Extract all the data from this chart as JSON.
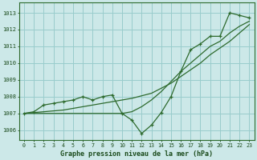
{
  "title": "Graphe pression niveau de la mer (hPa)",
  "bg_color": "#cce8e8",
  "grid_color": "#99cccc",
  "line_color": "#2d6a2d",
  "xlim": [
    -0.5,
    23.5
  ],
  "ylim": [
    1005.4,
    1013.6
  ],
  "yticks": [
    1006,
    1007,
    1008,
    1009,
    1010,
    1011,
    1012,
    1013
  ],
  "xticks": [
    0,
    1,
    2,
    3,
    4,
    5,
    6,
    7,
    8,
    9,
    10,
    11,
    12,
    13,
    14,
    15,
    16,
    17,
    18,
    19,
    20,
    21,
    22,
    23
  ],
  "series_main": [
    1007.0,
    1007.1,
    1007.5,
    1007.6,
    1007.7,
    1007.8,
    1008.0,
    1007.8,
    1008.0,
    1008.1,
    1007.0,
    1006.6,
    1005.8,
    1006.3,
    1007.05,
    1008.0,
    1009.5,
    1010.8,
    1011.15,
    1011.6,
    1011.6,
    1013.0,
    1012.85,
    1012.7
  ],
  "series_ref1": [
    1007.0,
    1007.05,
    1007.1,
    1007.15,
    1007.2,
    1007.3,
    1007.4,
    1007.5,
    1007.6,
    1007.7,
    1007.8,
    1007.9,
    1008.05,
    1008.2,
    1008.5,
    1008.8,
    1009.2,
    1009.6,
    1010.0,
    1010.5,
    1010.9,
    1011.3,
    1011.8,
    1012.3
  ],
  "series_ref2": [
    1007.0,
    1007.0,
    1007.0,
    1007.0,
    1007.0,
    1007.0,
    1007.0,
    1007.0,
    1007.0,
    1007.0,
    1007.0,
    1007.1,
    1007.4,
    1007.8,
    1008.3,
    1008.9,
    1009.5,
    1010.0,
    1010.5,
    1011.0,
    1011.3,
    1011.8,
    1012.2,
    1012.5
  ],
  "title_color": "#1a4a1a",
  "tick_color": "#1a4a1a"
}
